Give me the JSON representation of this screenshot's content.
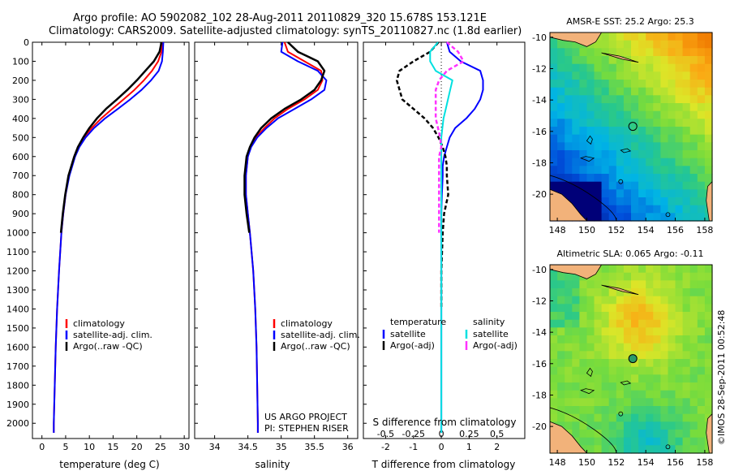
{
  "header": {
    "line1": "Argo profile: AO 5902082_102 28-Aug-2011 20110829_320 15.678S 153.121E",
    "line2": "Climatology: CARS2009. Satellite-adjusted climatology: synTS_20110827.nc (1.8d earlier)"
  },
  "colors": {
    "climatology": "#ff0000",
    "satellite": "#0000ff",
    "argo": "#000000",
    "salinity_sat": "#00e0e0",
    "salinity_argo": "#ff33ff",
    "land": "#f2b27a",
    "coast": "#000000"
  },
  "chart_data": [
    {
      "id": "temperature",
      "type": "line",
      "xlabel": "temperature (deg C)",
      "xlim": [
        -2,
        31
      ],
      "xticks": [
        0,
        5,
        10,
        15,
        20,
        25,
        30
      ],
      "ylim": [
        0,
        2080
      ],
      "yticks": [
        0,
        100,
        200,
        300,
        400,
        500,
        600,
        700,
        800,
        900,
        1000,
        1100,
        1200,
        1300,
        1400,
        1500,
        1600,
        1700,
        1800,
        1900,
        2000
      ],
      "legend": [
        "climatology",
        "satellite-adj. clim.",
        "Argo(..raw -QC)"
      ],
      "series": [
        {
          "name": "climatology",
          "color": "#ff0000",
          "depth": [
            0,
            50,
            100,
            150,
            200,
            250,
            300,
            350,
            400,
            450,
            500,
            550,
            600,
            700,
            800,
            900,
            1000,
            1200,
            1400,
            1600,
            1800,
            2000,
            2050
          ],
          "values": [
            25.3,
            25.2,
            24.5,
            23.2,
            21.5,
            19.5,
            17.2,
            14.8,
            12.5,
            10.5,
            8.8,
            7.6,
            6.8,
            5.7,
            5.0,
            4.5,
            4.1,
            3.6,
            3.2,
            2.9,
            2.7,
            2.5,
            2.5
          ]
        },
        {
          "name": "satellite-adj. clim.",
          "color": "#0000ff",
          "depth": [
            0,
            50,
            100,
            150,
            200,
            250,
            300,
            350,
            400,
            450,
            500,
            550,
            600,
            700,
            800,
            900,
            1000,
            1200,
            1400,
            1600,
            1800,
            2000,
            2050
          ],
          "values": [
            25.6,
            25.5,
            25.3,
            24.6,
            23.0,
            21.0,
            18.6,
            16.0,
            13.3,
            11.0,
            9.2,
            7.9,
            7.0,
            5.8,
            5.0,
            4.5,
            4.1,
            3.6,
            3.2,
            2.9,
            2.7,
            2.5,
            2.5
          ]
        },
        {
          "name": "Argo(..raw -QC)",
          "color": "#000000",
          "depth": [
            0,
            50,
            100,
            150,
            200,
            250,
            300,
            350,
            400,
            450,
            500,
            550,
            600,
            700,
            800,
            900,
            1000
          ],
          "values": [
            25.2,
            24.8,
            23.6,
            21.8,
            20.0,
            18.0,
            15.8,
            13.5,
            11.6,
            10.0,
            8.7,
            7.6,
            6.8,
            5.6,
            4.9,
            4.4,
            4.0
          ]
        }
      ]
    },
    {
      "id": "salinity",
      "type": "line",
      "xlabel": "salinity",
      "xlim": [
        33.7,
        36.15
      ],
      "xticks": [
        34,
        34.5,
        35,
        35.5,
        36
      ],
      "ylim": [
        0,
        2080
      ],
      "legend": [
        "climatology",
        "satellite-adj. clim.",
        "Argo(..raw -QC)"
      ],
      "series": [
        {
          "name": "climatology",
          "color": "#ff0000",
          "depth": [
            0,
            50,
            100,
            150,
            200,
            250,
            300,
            350,
            400,
            450,
            500,
            550,
            600,
            700,
            800,
            900,
            1000,
            1200,
            1400,
            1600,
            1800,
            2000,
            2050
          ],
          "values": [
            35.05,
            35.1,
            35.35,
            35.6,
            35.62,
            35.55,
            35.35,
            35.1,
            34.9,
            34.75,
            34.62,
            34.54,
            34.5,
            34.47,
            34.47,
            34.5,
            34.53,
            34.58,
            34.61,
            34.63,
            34.64,
            34.65,
            34.65
          ]
        },
        {
          "name": "satellite-adj. clim.",
          "color": "#0000ff",
          "depth": [
            0,
            50,
            100,
            150,
            200,
            250,
            300,
            350,
            400,
            450,
            500,
            550,
            600,
            700,
            800,
            900,
            1000,
            1200,
            1400,
            1600,
            1800,
            2000,
            2050
          ],
          "values": [
            35.02,
            35.0,
            35.25,
            35.55,
            35.68,
            35.65,
            35.45,
            35.2,
            34.95,
            34.78,
            34.64,
            34.55,
            34.5,
            34.47,
            34.47,
            34.5,
            34.53,
            34.58,
            34.61,
            34.63,
            34.64,
            34.65,
            34.65
          ]
        },
        {
          "name": "Argo(..raw -QC)",
          "color": "#000000",
          "depth": [
            0,
            50,
            100,
            150,
            200,
            250,
            300,
            350,
            400,
            450,
            500,
            550,
            600,
            700,
            800,
            900,
            1000
          ],
          "values": [
            35.1,
            35.25,
            35.55,
            35.65,
            35.6,
            35.5,
            35.3,
            35.05,
            34.85,
            34.7,
            34.6,
            34.53,
            34.48,
            34.45,
            34.45,
            34.48,
            34.52
          ]
        }
      ]
    },
    {
      "id": "differences",
      "type": "line",
      "xlabel": "T difference from climatology",
      "xlabel_top": "S difference from climatology",
      "xlim": [
        -2.8,
        3.0
      ],
      "xticks": [
        -2,
        -1,
        0,
        1,
        2
      ],
      "xticks_top": [
        -0.5,
        -0.25,
        0,
        0.25,
        0.5
      ],
      "ylim": [
        0,
        2080
      ],
      "legend_temperature_title": "temperature",
      "legend_salinity_title": "salinity",
      "legend_temperature": [
        "satellite",
        "Argo(-adj)"
      ],
      "legend_salinity": [
        "satellite",
        "Argo(-adj)"
      ],
      "series": [
        {
          "name": "T satellite",
          "color": "#0000ff",
          "depth": [
            0,
            50,
            100,
            150,
            200,
            250,
            300,
            350,
            400,
            450,
            500,
            550,
            600,
            650,
            700,
            800,
            900,
            1000,
            1200,
            1500,
            1800,
            2000,
            2050
          ],
          "values": [
            0.2,
            0.3,
            0.7,
            1.4,
            1.5,
            1.5,
            1.4,
            1.2,
            0.9,
            0.5,
            0.3,
            0.2,
            0.1,
            0.05,
            0.05,
            0.02,
            0.0,
            0.0,
            0.0,
            0.0,
            0.0,
            0.0,
            0.0
          ]
        },
        {
          "name": "T Argo(-adj)",
          "color": "#000000",
          "depth": [
            0,
            50,
            100,
            150,
            200,
            250,
            300,
            350,
            400,
            450,
            500,
            550,
            600,
            650,
            700,
            800,
            900,
            1000,
            1200,
            1400
          ],
          "values": [
            -0.1,
            -0.4,
            -1.0,
            -1.5,
            -1.6,
            -1.5,
            -1.4,
            -1.0,
            -0.6,
            -0.3,
            -0.1,
            0.05,
            0.15,
            0.2,
            0.2,
            0.25,
            0.1,
            0.05,
            0.0,
            0.0
          ]
        },
        {
          "name": "S satellite",
          "color": "#00e0e0",
          "depth": [
            0,
            50,
            100,
            150,
            200,
            250,
            300,
            350,
            400,
            450,
            500,
            600,
            700,
            800,
            900,
            1000,
            1200,
            1500,
            1800,
            2000,
            2050
          ],
          "values": [
            -0.03,
            -0.1,
            -0.1,
            -0.05,
            0.1,
            0.08,
            0.06,
            0.04,
            0.02,
            0.01,
            0.0,
            0.0,
            0.0,
            0.0,
            0.0,
            0.0,
            0.0,
            0.0,
            0.0,
            0.0,
            0.0
          ]
        },
        {
          "name": "S Argo(-adj)",
          "color": "#ff33ff",
          "depth": [
            0,
            50,
            100,
            150,
            200,
            250,
            300,
            350,
            400,
            450,
            500,
            550,
            600,
            700,
            800,
            900,
            1000
          ],
          "values": [
            0.05,
            0.15,
            0.2,
            0.05,
            -0.02,
            -0.05,
            -0.05,
            -0.05,
            -0.05,
            -0.03,
            -0.01,
            0.0,
            -0.02,
            -0.02,
            -0.02,
            -0.02,
            -0.02
          ]
        }
      ]
    },
    {
      "id": "sst_map",
      "type": "heatmap",
      "title": "AMSR-E SST: 25.2  Argo: 25.3",
      "xlim": [
        147.5,
        158.5
      ],
      "ylim": [
        -21.7,
        -9.7
      ],
      "xticks": [
        148,
        150,
        152,
        154,
        156,
        158
      ],
      "yticks": [
        -10,
        -12,
        -14,
        -16,
        -18,
        -20
      ],
      "argo_lon": 153.121,
      "argo_lat": -15.678
    },
    {
      "id": "sla_map",
      "type": "heatmap",
      "title": "Altimetric SLA: 0.065  Argo: -0.11",
      "xlim": [
        147.5,
        158.5
      ],
      "ylim": [
        -21.7,
        -9.7
      ],
      "xticks": [
        148,
        150,
        152,
        154,
        156,
        158
      ],
      "yticks": [
        -10,
        -12,
        -14,
        -16,
        -18,
        -20
      ],
      "argo_lon": 153.121,
      "argo_lat": -15.678
    }
  ],
  "credits": {
    "project": "US ARGO PROJECT",
    "pi": "PI: STEPHEN RISER",
    "stamp": "©IMOS 28-Sep-2011 00:52:48"
  }
}
